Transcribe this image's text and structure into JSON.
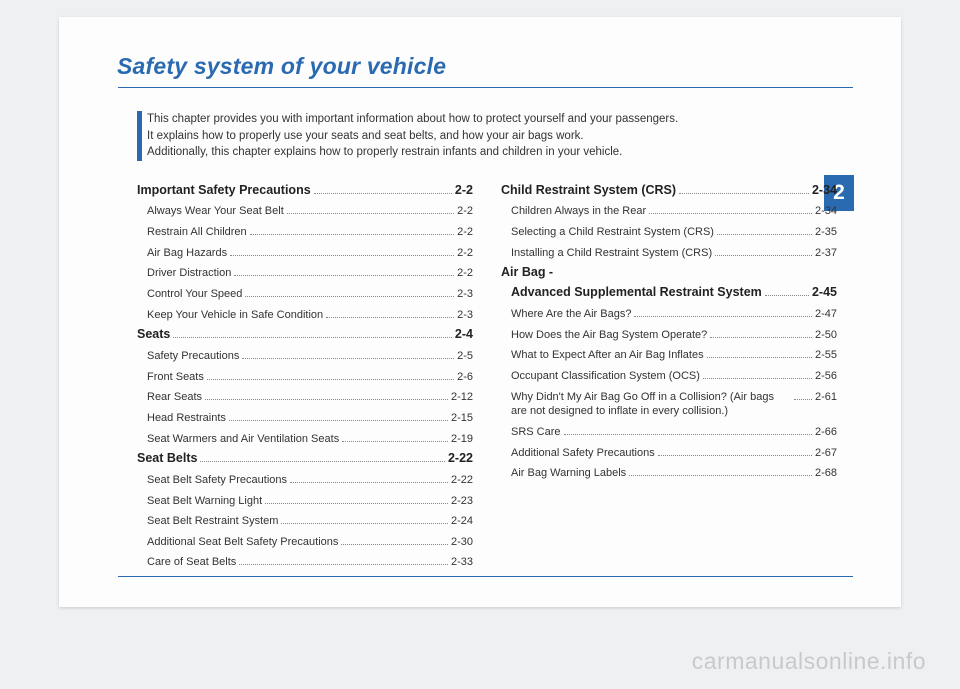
{
  "title": "Safety system of your vehicle",
  "intro": {
    "line1": "This chapter provides you with important information about how to protect yourself and your passengers.",
    "line2": "It explains how to properly use your seats and seat belts, and how your air bags work.",
    "line3": "Additionally, this chapter explains how to properly restrain infants and children in your vehicle."
  },
  "chapter_number": "2",
  "colors": {
    "accent": "#2a6ab0",
    "page_bg": "#fdfdfd",
    "body_bg": "#eef0f2",
    "text": "#333333",
    "watermark": "rgba(100,100,100,0.28)"
  },
  "toc": {
    "left": [
      {
        "type": "section",
        "label": "Important Safety Precautions",
        "pg": "2-2"
      },
      {
        "type": "sub",
        "label": "Always Wear Your Seat Belt",
        "pg": "2-2"
      },
      {
        "type": "sub",
        "label": "Restrain All Children",
        "pg": "2-2"
      },
      {
        "type": "sub",
        "label": "Air Bag Hazards",
        "pg": "2-2"
      },
      {
        "type": "sub",
        "label": "Driver Distraction",
        "pg": "2-2"
      },
      {
        "type": "sub",
        "label": "Control Your Speed",
        "pg": "2-3"
      },
      {
        "type": "sub",
        "label": "Keep Your Vehicle in Safe Condition",
        "pg": "2-3"
      },
      {
        "type": "section",
        "label": "Seats",
        "pg": "2-4"
      },
      {
        "type": "sub",
        "label": "Safety Precautions",
        "pg": "2-5"
      },
      {
        "type": "sub",
        "label": "Front Seats",
        "pg": "2-6"
      },
      {
        "type": "sub",
        "label": "Rear Seats",
        "pg": "2-12"
      },
      {
        "type": "sub",
        "label": "Head Restraints",
        "pg": "2-15"
      },
      {
        "type": "sub",
        "label": "Seat Warmers and Air Ventilation Seats",
        "pg": "2-19"
      },
      {
        "type": "section",
        "label": "Seat Belts",
        "pg": "2-22"
      },
      {
        "type": "sub",
        "label": "Seat Belt Safety Precautions",
        "pg": "2-22"
      },
      {
        "type": "sub",
        "label": "Seat Belt Warning Light",
        "pg": "2-23"
      },
      {
        "type": "sub",
        "label": "Seat Belt Restraint System",
        "pg": "2-24"
      },
      {
        "type": "sub",
        "label": "Additional Seat Belt Safety Precautions",
        "pg": "2-30"
      },
      {
        "type": "sub",
        "label": "Care of Seat Belts",
        "pg": "2-33"
      }
    ],
    "right": [
      {
        "type": "section",
        "label": "Child Restraint System (CRS)",
        "pg": "2-34"
      },
      {
        "type": "sub",
        "label": "Children Always in the Rear",
        "pg": "2-34"
      },
      {
        "type": "sub",
        "label": "Selecting a Child Restraint System (CRS)",
        "pg": "2-35"
      },
      {
        "type": "sub",
        "label": "Installing a Child Restraint System (CRS)",
        "pg": "2-37"
      },
      {
        "type": "section",
        "label": "Air Bag -",
        "pg": ""
      },
      {
        "type": "section",
        "label": "Advanced Supplemental Restraint System",
        "pg": "2-45",
        "indent": true
      },
      {
        "type": "sub",
        "label": "Where Are the Air Bags?",
        "pg": "2-47"
      },
      {
        "type": "sub",
        "label": "How Does the Air Bag System Operate?",
        "pg": "2-50"
      },
      {
        "type": "sub",
        "label": "What to Expect After an Air Bag Inflates",
        "pg": "2-55"
      },
      {
        "type": "sub",
        "label": "Occupant Classification System (OCS)",
        "pg": "2-56"
      },
      {
        "type": "sub",
        "label": "Why Didn't My Air Bag Go Off in a Collision? (Air bags are not designed to inflate in every collision.)",
        "pg": "2-61"
      },
      {
        "type": "sub",
        "label": "SRS Care",
        "pg": "2-66"
      },
      {
        "type": "sub",
        "label": "Additional Safety Precautions",
        "pg": "2-67"
      },
      {
        "type": "sub",
        "label": "Air Bag Warning Labels",
        "pg": "2-68"
      }
    ]
  },
  "watermark": "carmanualsonline.info"
}
